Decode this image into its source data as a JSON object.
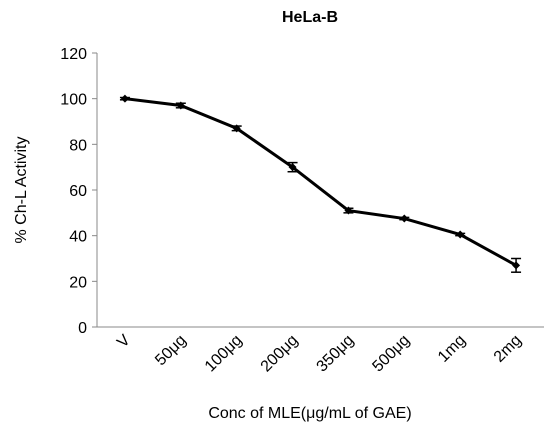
{
  "chart_data": {
    "type": "line",
    "title": "HeLa-B",
    "x_label": "Conc of MLE(μg/mL of GAE)",
    "y_label": "% Ch-L Activity",
    "categories": [
      "V",
      "50μg",
      "100μg",
      "200μg",
      "350μg",
      "500μg",
      "1mg",
      "2mg"
    ],
    "series": [
      {
        "name": "HeLa-B",
        "color": "#000000",
        "values": [
          100,
          97,
          87,
          70,
          51,
          47.5,
          40.5,
          27
        ],
        "errors": [
          0.5,
          1,
          1,
          2,
          1,
          0.5,
          0.5,
          3
        ]
      }
    ],
    "ylim": [
      0,
      120
    ],
    "yticks": [
      0,
      20,
      40,
      60,
      80,
      100,
      120
    ],
    "grid": false
  }
}
